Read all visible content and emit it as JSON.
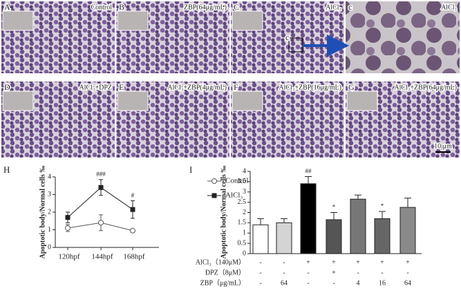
{
  "panels": [
    {
      "letter": "A",
      "label": "Control"
    },
    {
      "letter": "B",
      "label": "ZBP(64μg/mL)"
    },
    {
      "letter": "C",
      "label": "AlCl₃"
    },
    {
      "letter": "c",
      "label": "AlCl₃"
    },
    {
      "letter": "D",
      "label": "AlCl₃+DPZ"
    },
    {
      "letter": "E",
      "label": "AlCl₃+ZBP(4μg/mL)"
    },
    {
      "letter": "F",
      "label": "AlCl₃+ZBP(16μg/mL)"
    },
    {
      "letter": "G",
      "label": "AlCl₃+ZBP(64μg/mL)"
    }
  ],
  "zoom_label": "c",
  "scale_bar": "10 μm",
  "chart_data": [
    {
      "type": "line",
      "panel": "H",
      "ylabel": "Apoptotic body/Normal cells ‰",
      "categories": [
        "120hpf",
        "144hpf",
        "168hpf"
      ],
      "ylim": [
        0,
        4
      ],
      "yticks": [
        0,
        1,
        2,
        3,
        4
      ],
      "series": [
        {
          "name": "Control",
          "color": "#555555",
          "marker": "open-circle",
          "values": [
            1.1,
            1.4,
            0.95
          ],
          "errors": [
            0.2,
            0.45,
            0.05
          ],
          "annotations": [
            null,
            null,
            null
          ]
        },
        {
          "name": "AlCl₃",
          "color": "#222222",
          "marker": "square",
          "values": [
            1.7,
            3.4,
            2.15
          ],
          "errors": [
            0.3,
            0.45,
            0.5
          ],
          "annotations": [
            null,
            "###",
            "#"
          ]
        }
      ]
    },
    {
      "type": "bar",
      "panel": "I",
      "ylabel": "Apoptotic body/Normal cells ‰",
      "values": [
        1.4,
        1.5,
        3.4,
        1.65,
        2.65,
        1.7,
        2.25
      ],
      "errors": [
        0.3,
        0.2,
        0.35,
        0.35,
        0.2,
        0.35,
        0.45
      ],
      "colors": [
        "#ffffff",
        "#d4d4d4",
        "#000000",
        "#555555",
        "#777777",
        "#666666",
        "#8a8a8a"
      ],
      "annotations": [
        null,
        null,
        "##",
        "*",
        null,
        "*",
        null
      ],
      "ylim": [
        0,
        4
      ],
      "yticks": [
        0,
        0.5,
        1,
        1.5,
        2,
        2.5,
        3,
        3.5,
        4
      ],
      "conditions": [
        {
          "label": "AlCl₃（140μM）",
          "entries": [
            "-",
            "-",
            "+",
            "+",
            "+",
            "+",
            "+"
          ]
        },
        {
          "label": "DPZ（8μM）",
          "entries": [
            "-",
            "-",
            "-",
            "+",
            "-",
            "-",
            "-"
          ]
        },
        {
          "label": "ZBP（μg/mL）",
          "entries": [
            "-",
            "64",
            "-",
            "-",
            "4",
            "16",
            "64"
          ]
        }
      ]
    }
  ]
}
